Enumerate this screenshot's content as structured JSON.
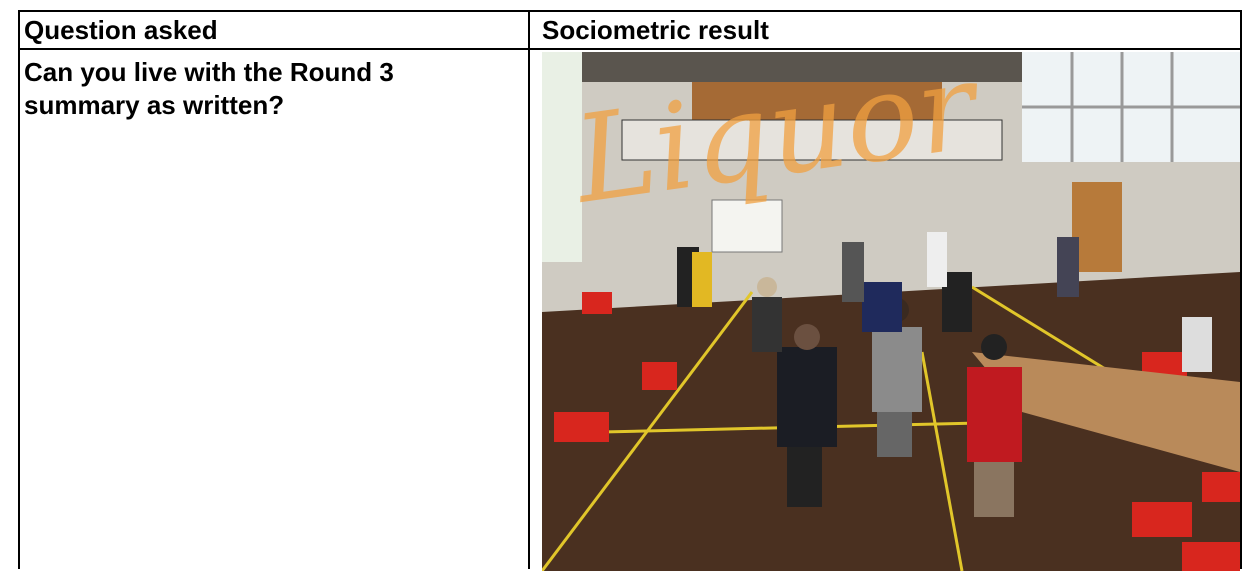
{
  "table": {
    "header": [
      "Question asked",
      "Sociometric result"
    ],
    "rows": [
      [
        "Can you live with the Round 3 summary as written?"
      ]
    ]
  },
  "image": {
    "overlay_text": "Liquor"
  }
}
